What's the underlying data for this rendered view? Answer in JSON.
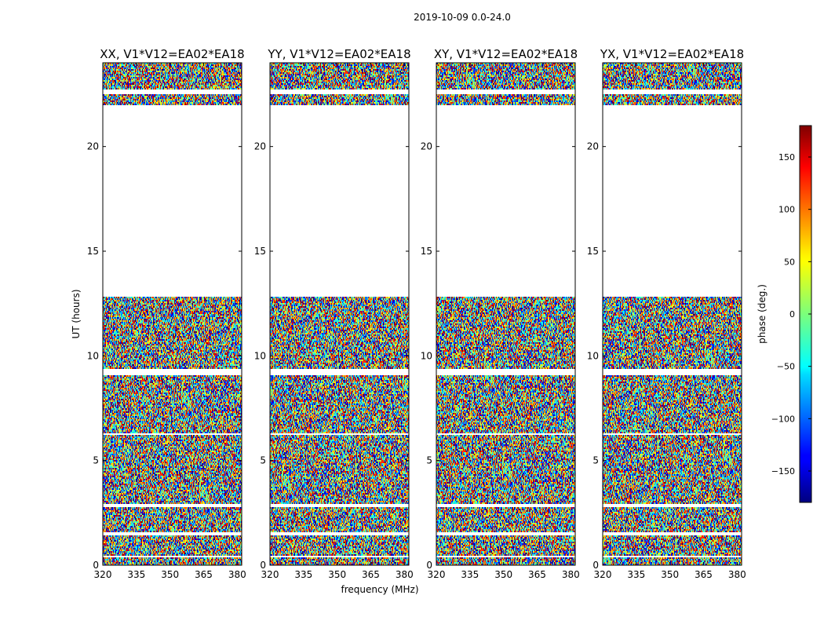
{
  "chart_data": {
    "type": "heatmap",
    "suptitle": "2019-10-09 0.0-24.0",
    "xlabel": "frequency (MHz)",
    "ylabel": "UT (hours)",
    "xlim": [
      320,
      382
    ],
    "ylim": [
      0,
      24
    ],
    "xticks": [
      320,
      335,
      350,
      365,
      380
    ],
    "yticks": [
      0,
      5,
      10,
      15,
      20
    ],
    "panels": [
      {
        "title": "XX, V1*V12=EA02*EA18",
        "polarization": "XX"
      },
      {
        "title": "YY, V1*V12=EA02*EA18",
        "polarization": "YY"
      },
      {
        "title": "XY, V1*V12=EA02*EA18",
        "polarization": "XY"
      },
      {
        "title": "YX, V1*V12=EA02*EA18",
        "polarization": "YX"
      }
    ],
    "data_coverage_ut_hours": [
      [
        0.0,
        12.8
      ],
      [
        22.0,
        24.0
      ]
    ],
    "flagged_gaps_ut_hours": [
      [
        0.35,
        0.45
      ],
      [
        1.45,
        1.55
      ],
      [
        2.8,
        2.95
      ],
      [
        6.2,
        6.3
      ],
      [
        9.1,
        9.4
      ],
      [
        12.8,
        22.0
      ],
      [
        22.5,
        22.7
      ]
    ],
    "colorbar": {
      "label": "phase (deg.)",
      "range": [
        -180,
        180
      ],
      "ticks": [
        -150,
        -100,
        -50,
        0,
        50,
        100,
        150
      ],
      "tick_labels": [
        "−150",
        "−100",
        "−50",
        "0",
        "50",
        "100",
        "150"
      ],
      "colormap": "jet"
    }
  }
}
